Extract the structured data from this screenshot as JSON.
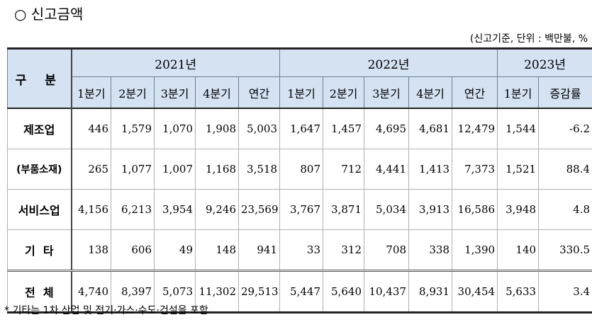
{
  "title": "○ 신고금액",
  "unit_note": "(신고기준, 단위 : 백만불, %",
  "footnote": "* 기타는 1차 산업 및 전기·가스·수도·건설을 포함",
  "header": {
    "category": "구 분",
    "years": [
      "2021년",
      "2022년",
      "2023년"
    ],
    "subcols": [
      "1분기",
      "2분기",
      "3분기",
      "4분기",
      "연간",
      "1분기",
      "2분기",
      "3분기",
      "4분기",
      "연간",
      "1분기",
      "증감률"
    ]
  },
  "rows": [
    {
      "label": "제조업",
      "values": [
        "446",
        "1,579",
        "1,070",
        "1,908",
        "5,003",
        "1,647",
        "1,457",
        "4,695",
        "4,681",
        "12,479",
        "1,544",
        "-6.2"
      ]
    },
    {
      "label": "(부품소재)",
      "values": [
        "265",
        "1,077",
        "1,007",
        "1,168",
        "3,518",
        "807",
        "712",
        "4,441",
        "1,413",
        "7,373",
        "1,521",
        "88.4"
      ]
    },
    {
      "label": "서비스업",
      "values": [
        "4,156",
        "6,213",
        "3,954",
        "9,246",
        "23,569",
        "3,767",
        "3,871",
        "5,034",
        "3,913",
        "16,586",
        "3,948",
        "4.8"
      ]
    },
    {
      "label": "기  타",
      "values": [
        "138",
        "606",
        "49",
        "148",
        "941",
        "33",
        "312",
        "708",
        "338",
        "1,390",
        "140",
        "330.5"
      ]
    },
    {
      "label": "전  체",
      "values": [
        "4,740",
        "8,397",
        "5,073",
        "11,302",
        "29,513",
        "5,447",
        "5,640",
        "10,437",
        "8,931",
        "30,454",
        "5,633",
        "3.4"
      ]
    }
  ]
}
